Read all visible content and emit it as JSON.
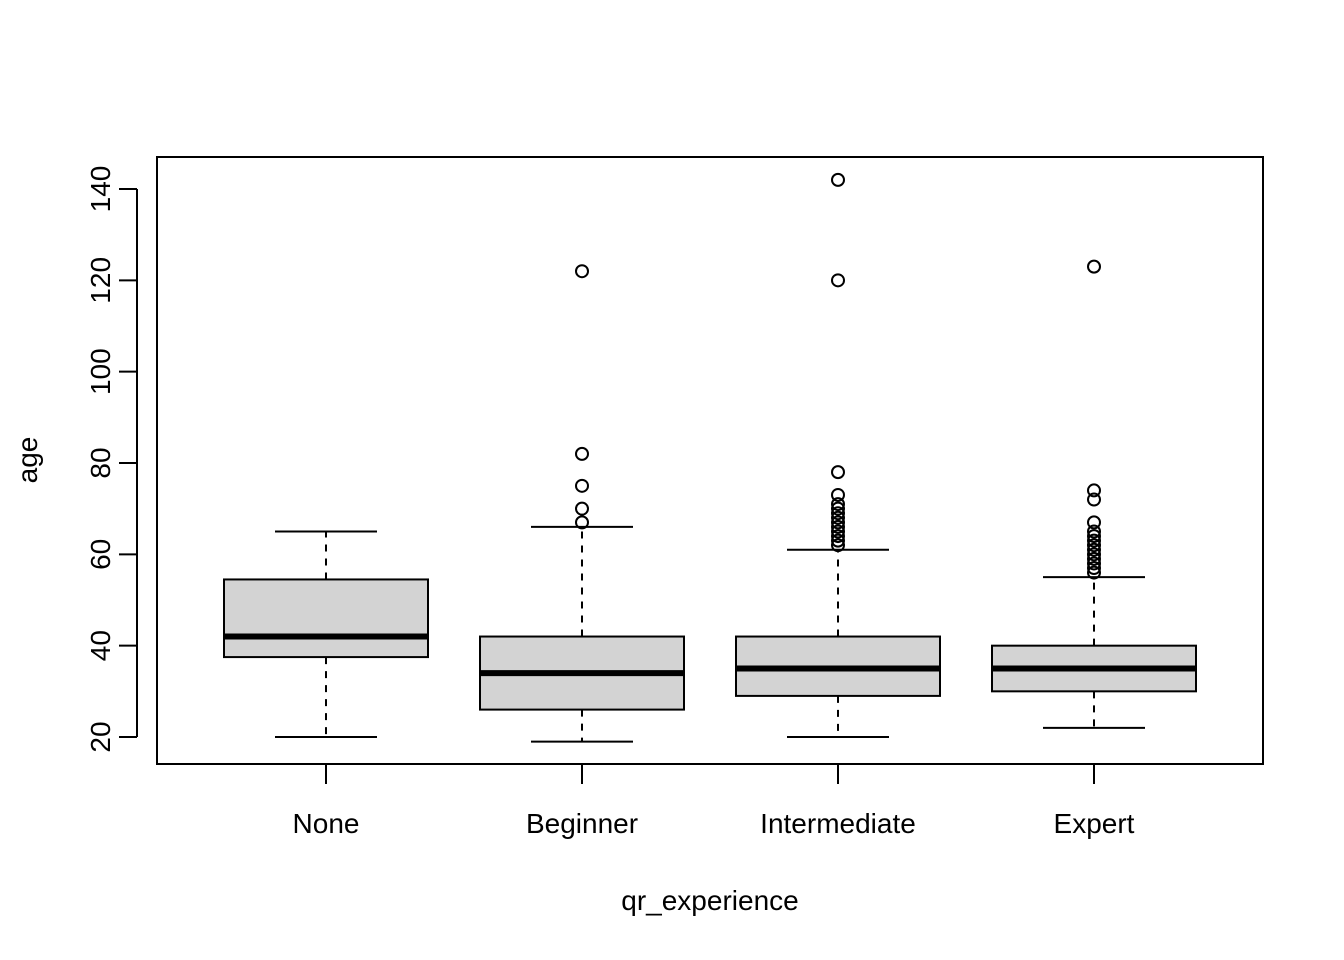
{
  "chart_data": {
    "type": "boxplot",
    "title": "",
    "xlabel": "qr_experience",
    "ylabel": "age",
    "ylim": [
      14,
      147
    ],
    "yticks": [
      20,
      40,
      60,
      80,
      100,
      120,
      140
    ],
    "grid": false,
    "box_fill": "#d3d3d3",
    "categories": [
      "None",
      "Beginner",
      "Intermediate",
      "Expert"
    ],
    "boxes": [
      {
        "category": "None",
        "whisker_low": 20,
        "q1": 37.5,
        "median": 42,
        "q3": 54.5,
        "whisker_high": 65,
        "outliers": []
      },
      {
        "category": "Beginner",
        "whisker_low": 19,
        "q1": 26,
        "median": 34,
        "q3": 42,
        "whisker_high": 66,
        "outliers": [
          67,
          70,
          75,
          82,
          122
        ]
      },
      {
        "category": "Intermediate",
        "whisker_low": 20,
        "q1": 29,
        "median": 35,
        "q3": 42,
        "whisker_high": 61,
        "outliers": [
          62,
          63,
          64,
          65,
          66,
          67,
          68,
          69,
          70,
          71,
          73,
          78,
          120,
          142
        ]
      },
      {
        "category": "Expert",
        "whisker_low": 22,
        "q1": 30,
        "median": 35,
        "q3": 40,
        "whisker_high": 55,
        "outliers": [
          56,
          57,
          58,
          59,
          60,
          61,
          62,
          63,
          64,
          65,
          67,
          72,
          74,
          123
        ]
      }
    ]
  }
}
